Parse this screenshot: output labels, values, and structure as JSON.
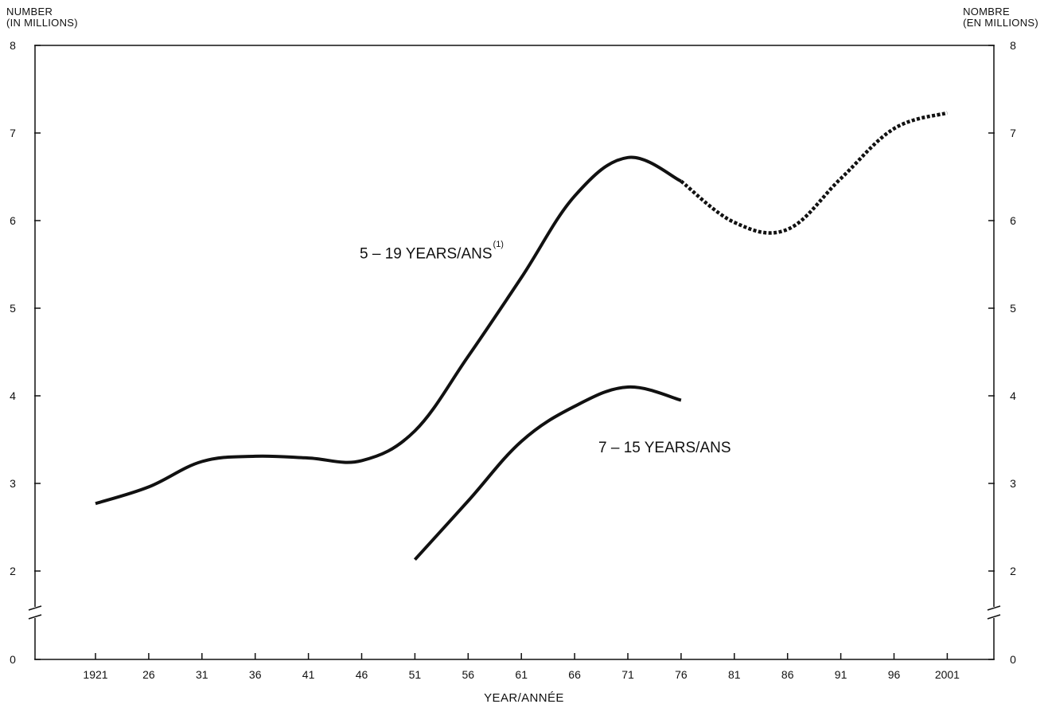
{
  "chart_data": {
    "type": "line",
    "ylabel_left": [
      "NUMBER",
      "(IN MILLIONS)"
    ],
    "ylabel_right": [
      "NOMBRE",
      "(EN MILLIONS)"
    ],
    "xlabel": "YEAR/ANNÉE",
    "categories": [
      "1921",
      "26",
      "31",
      "36",
      "41",
      "46",
      "51",
      "56",
      "61",
      "66",
      "71",
      "76",
      "81",
      "86",
      "91",
      "96",
      "2001"
    ],
    "x_years": [
      1921,
      1926,
      1931,
      1936,
      1941,
      1946,
      1951,
      1956,
      1961,
      1966,
      1971,
      1976,
      1981,
      1986,
      1991,
      1996,
      2001
    ],
    "y_ticks": [
      0,
      2,
      3,
      4,
      5,
      6,
      7,
      8
    ],
    "ylim": [
      0,
      8
    ],
    "y_axis_break_between": [
      0,
      2
    ],
    "series": [
      {
        "name": "5 – 19 YEARS/ANS",
        "name_text": "5 – 19 YEARS/ANS",
        "footnote": "(1)",
        "actual": [
          [
            1921,
            2.77
          ],
          [
            1926,
            2.96
          ],
          [
            1931,
            3.25
          ],
          [
            1936,
            3.31
          ],
          [
            1941,
            3.29
          ],
          [
            1946,
            3.26
          ],
          [
            1951,
            3.6
          ],
          [
            1956,
            4.45
          ],
          [
            1961,
            5.35
          ],
          [
            1966,
            6.28
          ],
          [
            1971,
            6.72
          ],
          [
            1976,
            6.45
          ]
        ],
        "projected": [
          [
            1976,
            6.45
          ],
          [
            1981,
            5.98
          ],
          [
            1986,
            5.9
          ],
          [
            1991,
            6.48
          ],
          [
            1996,
            7.05
          ],
          [
            2001,
            7.23
          ]
        ]
      },
      {
        "name": "7 – 15 YEARS/ANS",
        "name_text": "7 – 15 YEARS/ANS",
        "actual": [
          [
            1951,
            2.13
          ],
          [
            1956,
            2.8
          ],
          [
            1961,
            3.48
          ],
          [
            1966,
            3.88
          ],
          [
            1971,
            4.1
          ],
          [
            1976,
            3.95
          ]
        ]
      }
    ],
    "line_color": "#111111"
  }
}
